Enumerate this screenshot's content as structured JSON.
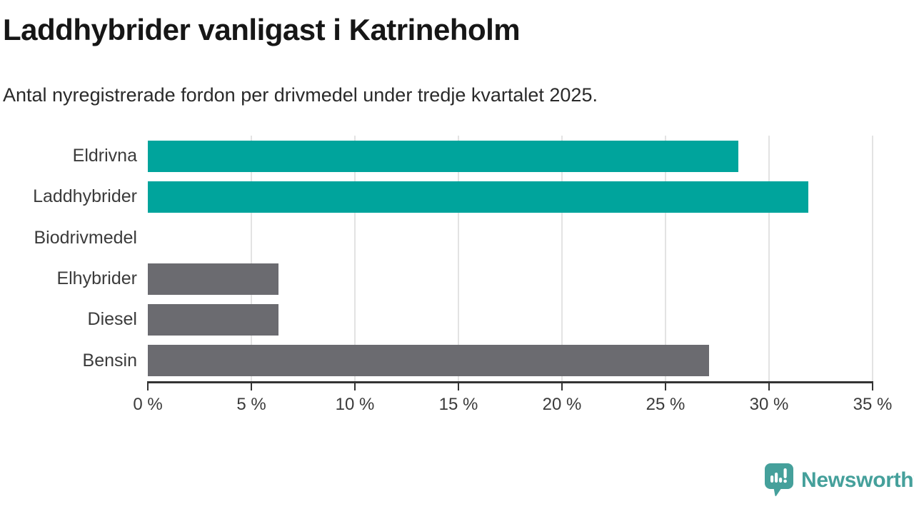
{
  "chart_data": {
    "type": "bar",
    "orientation": "horizontal",
    "title": "Laddhybrider vanligast i Katrineholm",
    "subtitle": "Antal nyregistrerade fordon per drivmedel under tredje kvartalet 2025.",
    "categories": [
      "Eldrivna",
      "Laddhybrider",
      "Biodrivmedel",
      "Elhybrider",
      "Diesel",
      "Bensin"
    ],
    "values": [
      28.5,
      31.9,
      0,
      6.3,
      6.3,
      27.1
    ],
    "unit": "%",
    "bar_colors": [
      "#00a49c",
      "#00a49c",
      "#6b6b70",
      "#6b6b70",
      "#6b6b70",
      "#6b6b70"
    ],
    "highlight_color": "#00a49c",
    "default_color": "#6b6b70",
    "xlim": [
      0,
      35
    ],
    "x_ticks": [
      0,
      5,
      10,
      15,
      20,
      25,
      30,
      35
    ],
    "x_tick_labels": [
      "0 %",
      "5 %",
      "10 %",
      "15 %",
      "20 %",
      "25 %",
      "30 %",
      "35 %"
    ],
    "grid": "vertical",
    "legend": "none",
    "xlabel": "",
    "ylabel": ""
  },
  "branding": {
    "logo_text": "Newsworthy",
    "logo_color": "#45a09b",
    "logo_icon": "newsworthy-speech-bubble-bar-chart-icon"
  }
}
